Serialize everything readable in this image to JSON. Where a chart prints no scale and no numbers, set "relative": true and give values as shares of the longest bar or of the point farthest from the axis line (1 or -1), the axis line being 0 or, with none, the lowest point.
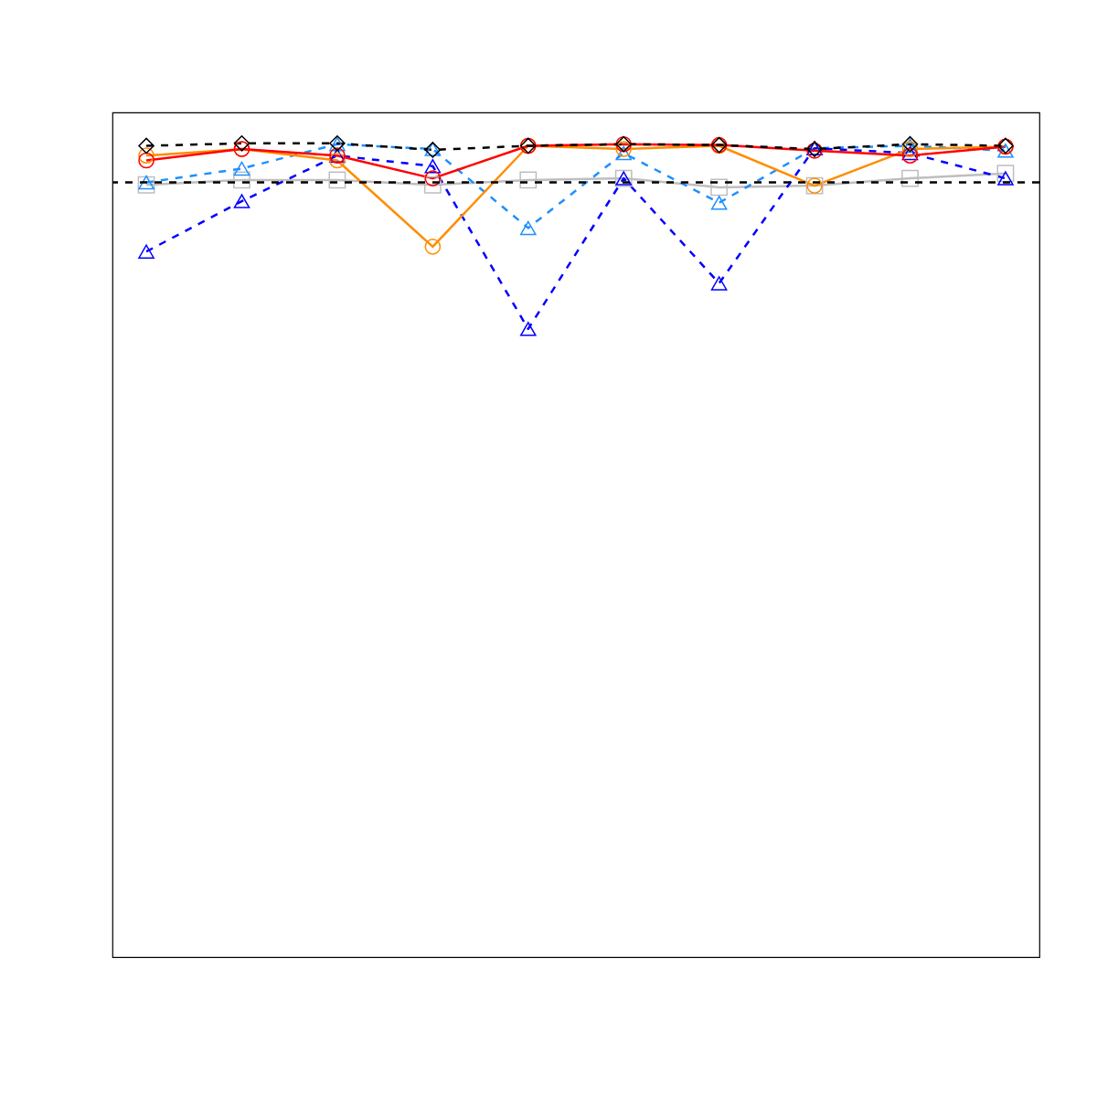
{
  "chart_data": {
    "type": "line",
    "relative": true,
    "categories": [
      null,
      null,
      null,
      null,
      null,
      null,
      null,
      null,
      null,
      null
    ],
    "series": [
      {
        "color": "#bebebe",
        "marker": "square",
        "line_style": "solid",
        "values": [
          0.949,
          0.955,
          0.955,
          0.949,
          0.955,
          0.957,
          0.946,
          0.948,
          0.957,
          0.963
        ]
      },
      {
        "color": "#1e90ff",
        "marker": "triangle",
        "line_style": "dashed",
        "values": [
          0.952,
          0.969,
          0.999,
          0.993,
          0.896,
          0.988,
          0.927,
          0.994,
          0.997,
          0.991
        ]
      },
      {
        "color": "#0000ff",
        "marker": "triangle",
        "line_style": "dashed",
        "values": [
          0.867,
          0.929,
          0.985,
          0.972,
          0.772,
          0.957,
          0.828,
          0.994,
          0.988,
          0.957
        ]
      },
      {
        "color": "#ff8c00",
        "marker": "circle",
        "line_style": "solid",
        "values": [
          0.985,
          0.993,
          0.979,
          0.873,
          0.997,
          0.993,
          0.997,
          0.948,
          0.993,
          0.996
        ]
      },
      {
        "color": "#ff0000",
        "marker": "circle",
        "line_style": "solid",
        "values": [
          0.979,
          0.993,
          0.985,
          0.957,
          0.997,
          0.999,
          0.998,
          0.991,
          0.985,
          0.996
        ]
      },
      {
        "color": "#000000",
        "marker": "diamond",
        "line_style": "dashed",
        "values": [
          0.997,
          1,
          1,
          0.992,
          0.997,
          0.999,
          0.998,
          0.993,
          0.999,
          0.997
        ]
      }
    ],
    "ref_lines": [
      {
        "axis": "y",
        "value": 0.952,
        "color": "#000000",
        "line_style": "dashed"
      }
    ]
  }
}
